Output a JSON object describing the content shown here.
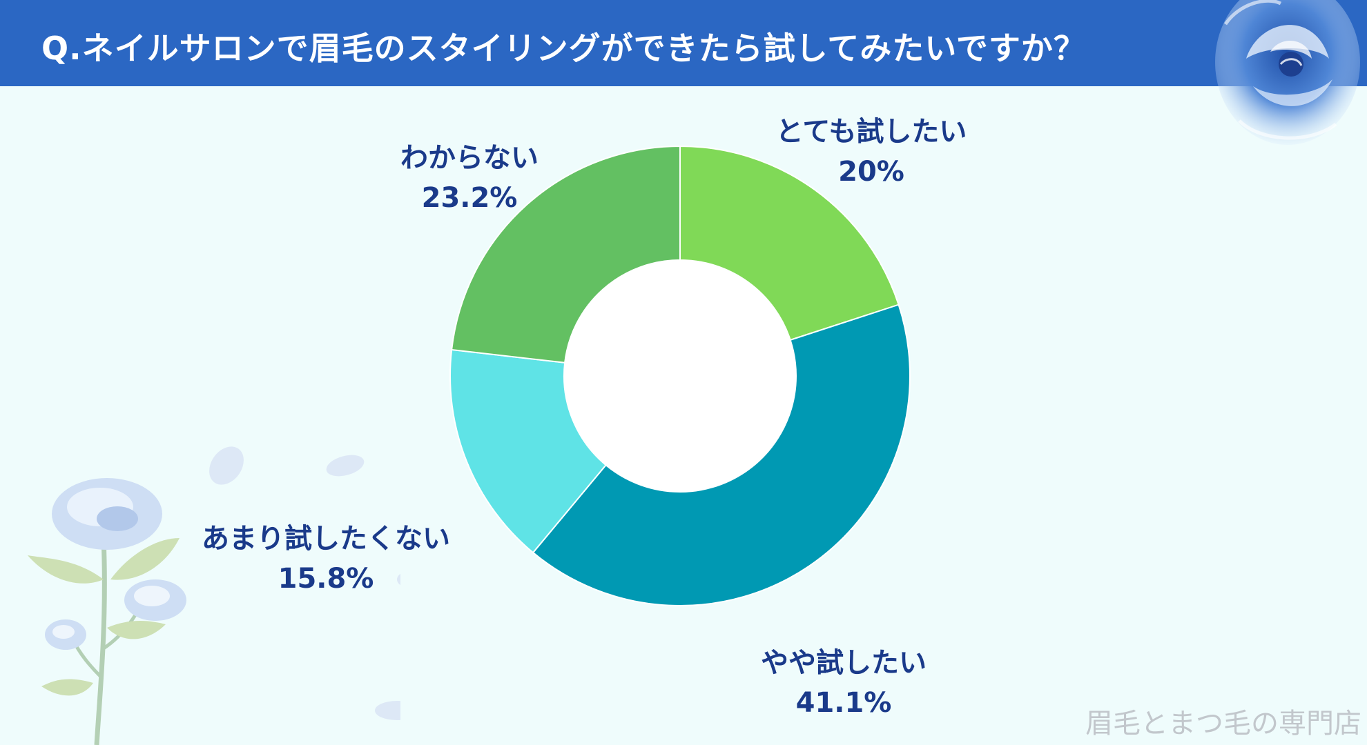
{
  "header": {
    "title": "Q.ネイルサロンで眉毛のスタイリングができたら試してみたいですか？"
  },
  "watermark": "眉毛とまつ毛の専門店",
  "decorations": {
    "top_right": "blue-rose-watercolor",
    "bottom_left": "blue-rose-branch-with-petals"
  },
  "colors": {
    "header_bg": "#2b67c3",
    "page_bg": "#effcfc",
    "label_text": "#1a3a8a"
  },
  "chart_data": {
    "type": "pie",
    "donut": true,
    "title": "",
    "start_angle_deg": 0,
    "direction": "clockwise",
    "legend": "none",
    "slices": [
      {
        "label": "とても試したい",
        "value": 20,
        "display": "20%",
        "color": "#80d957"
      },
      {
        "label": "やや試したい",
        "value": 41.1,
        "display": "41.1%",
        "color": "#0099b3"
      },
      {
        "label": "あまり試したくない",
        "value": 15.8,
        "display": "15.8%",
        "color": "#5fe3e6"
      },
      {
        "label": "わからない",
        "value": 23.2,
        "display": "23.2%",
        "color": "#63c062"
      }
    ]
  }
}
